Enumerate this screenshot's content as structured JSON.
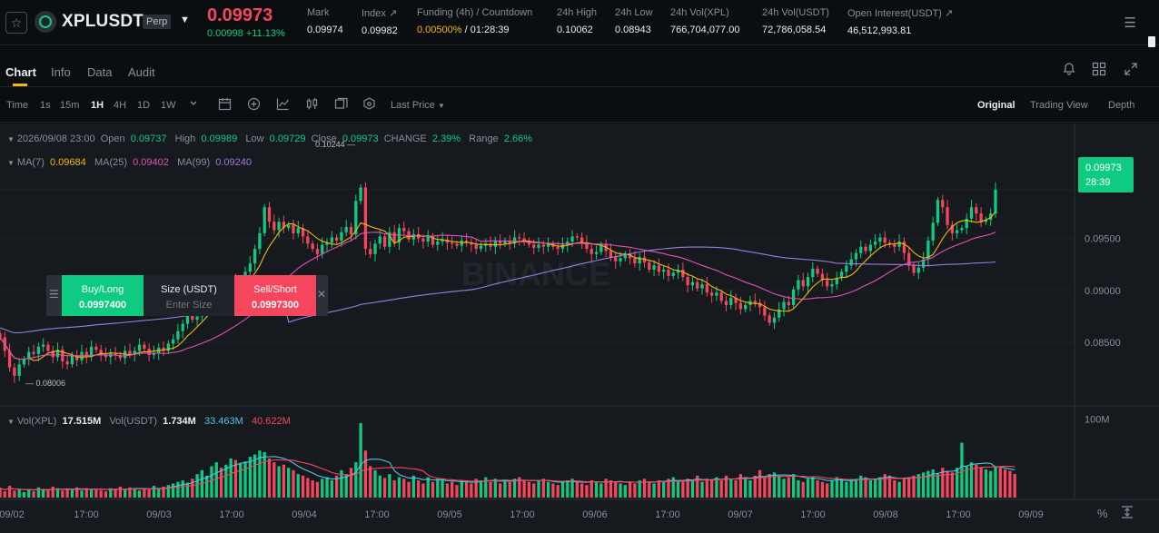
{
  "header": {
    "symbol": "XPLUSDT",
    "contract_type": "Perp",
    "last_price": "0.09973",
    "change": "0.00998 +11.13%",
    "stats": [
      {
        "label": "Mark",
        "value": "0.09974"
      },
      {
        "label": "Index ↗",
        "value": "0.09982"
      },
      {
        "label": "Funding (4h) / Countdown",
        "value_rate": "0.00500%",
        "value_countdown": " / 01:28:39"
      },
      {
        "label": "24h High",
        "value": "0.10062"
      },
      {
        "label": "24h Low",
        "value": "0.08943"
      },
      {
        "label": "24h Vol(XPL)",
        "value": "766,704,077.00"
      },
      {
        "label": "24h Vol(USDT)",
        "value": "72,786,058.54"
      },
      {
        "label": "Open Interest(USDT) ↗",
        "value": "46,512,993.81"
      }
    ]
  },
  "tabs": [
    "Chart",
    "Info",
    "Data",
    "Audit"
  ],
  "toolbar": {
    "intervals": [
      "Time",
      "1s",
      "15m",
      "1H",
      "4H",
      "1D",
      "1W"
    ],
    "active_interval": "1H",
    "price_type": "Last Price",
    "views": [
      "Original",
      "Trading View",
      "Depth"
    ],
    "active_view": "Original"
  },
  "ohlc": {
    "date": "2026/09/08 23:00",
    "open_label": "Open",
    "open": "0.09737",
    "high_label": "High",
    "high": "0.09989",
    "low_label": "Low",
    "low": "0.09729",
    "close_label": "Close",
    "close": "0.09973",
    "change_label": "CHANGE",
    "change": "2.39%",
    "range_label": "Range",
    "range": "2.66%"
  },
  "ma": {
    "ma7_label": "MA(7)",
    "ma7": "0.09684",
    "ma25_label": "MA(25)",
    "ma25": "0.09402",
    "ma99_label": "MA(99)",
    "ma99": "0.09240"
  },
  "volume_legend": {
    "vol_xpl_label": "Vol(XPL)",
    "vol_xpl": "17.515M",
    "vol_usdt_label": "Vol(USDT)",
    "vol_usdt": "1.734M",
    "ma1": "33.463M",
    "ma2": "40.622M"
  },
  "current_price_tag": {
    "price": "0.09973",
    "countdown": "28:39"
  },
  "order_panel": {
    "buy_label": "Buy/Long",
    "buy_price": "0.0997400",
    "size_label": "Size (USDT)",
    "size_placeholder": "Enter Size",
    "sell_label": "Sell/Short",
    "sell_price": "0.0997300"
  },
  "watermark": "BINANCE",
  "colors": {
    "up": "#0ecb81",
    "down": "#f6465d",
    "ma7": "#f0b90b",
    "ma25": "#e052b5",
    "ma99": "#9c7ce0",
    "vol_ma1": "#4fc3e8",
    "vol_ma2": "#f6465d"
  },
  "chart_data": {
    "type": "candlestick",
    "price_axis_ticks": [
      "0.09500",
      "0.09000",
      "0.08500"
    ],
    "volume_axis_ticks": [
      "100M"
    ],
    "x_ticks": [
      "09/02",
      "17:00",
      "09/03",
      "17:00",
      "09/04",
      "17:00",
      "09/05",
      "17:00",
      "09/06",
      "17:00",
      "09/07",
      "17:00",
      "09/08",
      "17:00",
      "09/09"
    ],
    "max_marker": "0.10244",
    "min_marker": "0.08006",
    "ylim": [
      0.079,
      0.105
    ],
    "closes": [
      0.0855,
      0.0842,
      0.0826,
      0.0818,
      0.0829,
      0.0834,
      0.0841,
      0.0839,
      0.0846,
      0.0848,
      0.0842,
      0.0836,
      0.0843,
      0.0832,
      0.0829,
      0.0838,
      0.0833,
      0.0841,
      0.0837,
      0.0846,
      0.0843,
      0.0838,
      0.0836,
      0.084,
      0.0838,
      0.0835,
      0.0842,
      0.0839,
      0.0842,
      0.0848,
      0.0844,
      0.0838,
      0.084,
      0.0845,
      0.0842,
      0.0849,
      0.0853,
      0.0861,
      0.0868,
      0.0877,
      0.0872,
      0.0875,
      0.0882,
      0.0888,
      0.0893,
      0.0901,
      0.0897,
      0.0905,
      0.091,
      0.0906,
      0.0912,
      0.0918,
      0.0926,
      0.094,
      0.0955,
      0.098,
      0.0966,
      0.0958,
      0.0966,
      0.096,
      0.0963,
      0.0955,
      0.096,
      0.0952,
      0.0945,
      0.094,
      0.0935,
      0.0944,
      0.0946,
      0.0951,
      0.0948,
      0.0956,
      0.0961,
      0.0954,
      0.0986,
      0.0999,
      0.094,
      0.0935,
      0.0945,
      0.0952,
      0.0942,
      0.0956,
      0.0946,
      0.096,
      0.0957,
      0.0949,
      0.0954,
      0.095,
      0.0947,
      0.0952,
      0.0944,
      0.0947,
      0.0949,
      0.0946,
      0.0945,
      0.0943,
      0.0948,
      0.0946,
      0.0944,
      0.094,
      0.0943,
      0.0945,
      0.0942,
      0.0948,
      0.0945,
      0.0948,
      0.0945,
      0.0951,
      0.095,
      0.0948,
      0.0944,
      0.0941,
      0.0944,
      0.0942,
      0.0945,
      0.0942,
      0.094,
      0.0944,
      0.0947,
      0.0952,
      0.0951,
      0.0946,
      0.094,
      0.0935,
      0.0937,
      0.0944,
      0.0938,
      0.0932,
      0.0928,
      0.0931,
      0.0935,
      0.0931,
      0.0926,
      0.0932,
      0.0927,
      0.092,
      0.0924,
      0.0918,
      0.092,
      0.0914,
      0.0917,
      0.092,
      0.0913,
      0.0905,
      0.0908,
      0.0902,
      0.0906,
      0.0898,
      0.0895,
      0.0898,
      0.089,
      0.0886,
      0.0893,
      0.0888,
      0.0882,
      0.0886,
      0.089,
      0.0888,
      0.0884,
      0.0876,
      0.0869,
      0.0874,
      0.0882,
      0.0889,
      0.0886,
      0.0901,
      0.091,
      0.0904,
      0.0913,
      0.0921,
      0.0916,
      0.091,
      0.0904,
      0.0906,
      0.0912,
      0.0918,
      0.0924,
      0.093,
      0.0936,
      0.0942,
      0.0938,
      0.0944,
      0.0947,
      0.0951,
      0.0946,
      0.0944,
      0.0942,
      0.0947,
      0.0936,
      0.0924,
      0.0917,
      0.0922,
      0.093,
      0.0948,
      0.0965,
      0.0987,
      0.098,
      0.0963,
      0.0955,
      0.0958,
      0.096,
      0.0969,
      0.098,
      0.0974,
      0.0966,
      0.0968,
      0.0974,
      0.0997
    ],
    "volumes": [
      12,
      8,
      15,
      9,
      10,
      7,
      11,
      8,
      13,
      10,
      9,
      14,
      12,
      9,
      11,
      10,
      13,
      9,
      12,
      11,
      10,
      9,
      8,
      12,
      11,
      14,
      10,
      13,
      12,
      9,
      11,
      10,
      15,
      12,
      14,
      16,
      18,
      20,
      22,
      19,
      24,
      30,
      35,
      28,
      40,
      45,
      38,
      42,
      50,
      48,
      44,
      46,
      52,
      55,
      60,
      58,
      50,
      45,
      40,
      42,
      38,
      35,
      30,
      28,
      25,
      22,
      20,
      24,
      26,
      22,
      28,
      35,
      30,
      38,
      45,
      95,
      60,
      40,
      35,
      28,
      25,
      30,
      22,
      26,
      24,
      20,
      28,
      22,
      18,
      26,
      20,
      24,
      22,
      18,
      20,
      16,
      22,
      20,
      18,
      24,
      22,
      26,
      20,
      24,
      18,
      22,
      20,
      24,
      26,
      22,
      20,
      18,
      22,
      24,
      20,
      18,
      16,
      20,
      22,
      24,
      20,
      18,
      16,
      22,
      20,
      18,
      24,
      22,
      20,
      18,
      16,
      20,
      18,
      22,
      24,
      20,
      18,
      22,
      20,
      24,
      26,
      22,
      20,
      24,
      22,
      28,
      20,
      24,
      22,
      26,
      22,
      28,
      24,
      22,
      30,
      26,
      22,
      28,
      35,
      26,
      30,
      32,
      28,
      24,
      26,
      30,
      22,
      20,
      24,
      26,
      22,
      20,
      18,
      22,
      26,
      24,
      20,
      22,
      24,
      28,
      26,
      22,
      24,
      26,
      30,
      28,
      22,
      20,
      24,
      26,
      28,
      30,
      32,
      34,
      36,
      30,
      38,
      34,
      32,
      38,
      70,
      40,
      45,
      42,
      38,
      36,
      34,
      40,
      38,
      36,
      34,
      30
    ]
  }
}
